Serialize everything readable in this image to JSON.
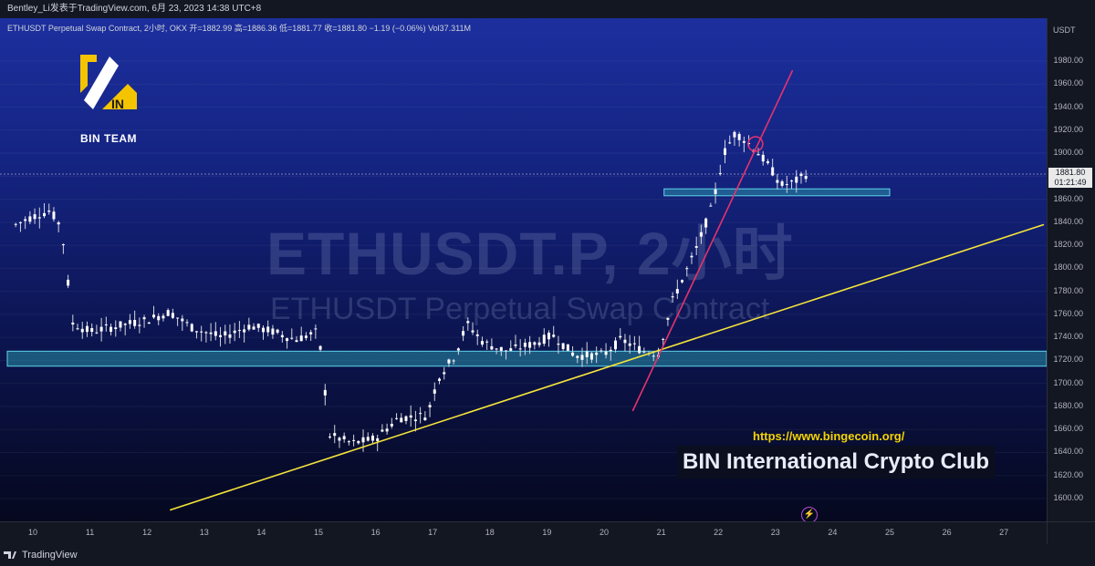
{
  "header": {
    "publish_line": "Bentley_Li发表于TradingView.com, 6月 23, 2023 14:38 UTC+8"
  },
  "legend": {
    "text": "ETHUSDT Perpetual Swap Contract, 2小时, OKX  开=1882.99  高=1886.36  低=1881.77  收=1881.80  −1.19 (−0.06%)  Vol37.311M"
  },
  "watermark": {
    "symbol": "ETHUSDT.P, 2小时",
    "description": "ETHUSDT Perpetual Swap Contract"
  },
  "logo": {
    "name": "BIN TEAM",
    "mark_text": "IN"
  },
  "promo": {
    "url": "https://www.bingecoin.org/",
    "club": "BIN International Crypto Club"
  },
  "footer": {
    "brand": "TradingView"
  },
  "colors": {
    "yellow_line": "#f5e43a",
    "pink_line": "#e5336e",
    "zone_fill": "#2a8fa8",
    "candle": "#d1d4dc"
  },
  "chart_data": {
    "type": "candlestick",
    "symbol": "ETHUSDT.P",
    "interval": "2小时",
    "exchange": "OKX",
    "ohlc_last": {
      "open": 1882.99,
      "high": 1886.36,
      "low": 1881.77,
      "close": 1881.8,
      "change": -1.19,
      "change_pct": -0.06,
      "volume": "37.311M"
    },
    "price_axis": {
      "unit": "USDT",
      "ticks": [
        1600,
        1620,
        1640,
        1660,
        1680,
        1700,
        1720,
        1740,
        1760,
        1780,
        1800,
        1820,
        1840,
        1860,
        1880,
        1900,
        1920,
        1940,
        1960,
        1980
      ]
    },
    "last_price_label": {
      "price": "1881.80",
      "countdown": "01:21:49"
    },
    "time_axis": {
      "ticks": [
        "10",
        "11",
        "12",
        "13",
        "14",
        "15",
        "16",
        "17",
        "18",
        "19",
        "20",
        "21",
        "22",
        "23",
        "24",
        "25",
        "26",
        "27"
      ]
    },
    "support_zones": [
      {
        "low": 1715,
        "high": 1728
      },
      {
        "low": 1863,
        "high": 1869
      }
    ],
    "trendlines": [
      {
        "name": "yellow",
        "from": {
          "day": 12.4,
          "price": 1590
        },
        "to": {
          "day": 27.7,
          "price": 1838
        }
      },
      {
        "name": "pink",
        "from": {
          "day": 20.5,
          "price": 1676
        },
        "to": {
          "day": 23.3,
          "price": 1972
        }
      }
    ],
    "daily_path": [
      {
        "day": 9.7,
        "price": 1838
      },
      {
        "day": 10.0,
        "price": 1845
      },
      {
        "day": 10.3,
        "price": 1850
      },
      {
        "day": 10.5,
        "price": 1836
      },
      {
        "day": 10.7,
        "price": 1752
      },
      {
        "day": 11.0,
        "price": 1745
      },
      {
        "day": 11.5,
        "price": 1750
      },
      {
        "day": 12.0,
        "price": 1755
      },
      {
        "day": 12.4,
        "price": 1762
      },
      {
        "day": 12.8,
        "price": 1748
      },
      {
        "day": 13.3,
        "price": 1740
      },
      {
        "day": 13.8,
        "price": 1750
      },
      {
        "day": 14.2,
        "price": 1745
      },
      {
        "day": 14.6,
        "price": 1738
      },
      {
        "day": 15.0,
        "price": 1745
      },
      {
        "day": 15.2,
        "price": 1655
      },
      {
        "day": 15.6,
        "price": 1648
      },
      {
        "day": 16.0,
        "price": 1652
      },
      {
        "day": 16.4,
        "price": 1670
      },
      {
        "day": 16.9,
        "price": 1672
      },
      {
        "day": 17.1,
        "price": 1705
      },
      {
        "day": 17.4,
        "price": 1725
      },
      {
        "day": 17.6,
        "price": 1752
      },
      {
        "day": 17.9,
        "price": 1735
      },
      {
        "day": 18.3,
        "price": 1728
      },
      {
        "day": 18.8,
        "price": 1735
      },
      {
        "day": 19.1,
        "price": 1742
      },
      {
        "day": 19.5,
        "price": 1724
      },
      {
        "day": 20.0,
        "price": 1725
      },
      {
        "day": 20.3,
        "price": 1738
      },
      {
        "day": 20.7,
        "price": 1728
      },
      {
        "day": 20.95,
        "price": 1726
      },
      {
        "day": 21.2,
        "price": 1772
      },
      {
        "day": 21.6,
        "price": 1815
      },
      {
        "day": 21.9,
        "price": 1855
      },
      {
        "day": 22.1,
        "price": 1900
      },
      {
        "day": 22.3,
        "price": 1918
      },
      {
        "day": 22.5,
        "price": 1910
      },
      {
        "day": 22.7,
        "price": 1900
      },
      {
        "day": 22.9,
        "price": 1888
      },
      {
        "day": 23.1,
        "price": 1872
      },
      {
        "day": 23.3,
        "price": 1874
      },
      {
        "day": 23.55,
        "price": 1882
      }
    ]
  }
}
